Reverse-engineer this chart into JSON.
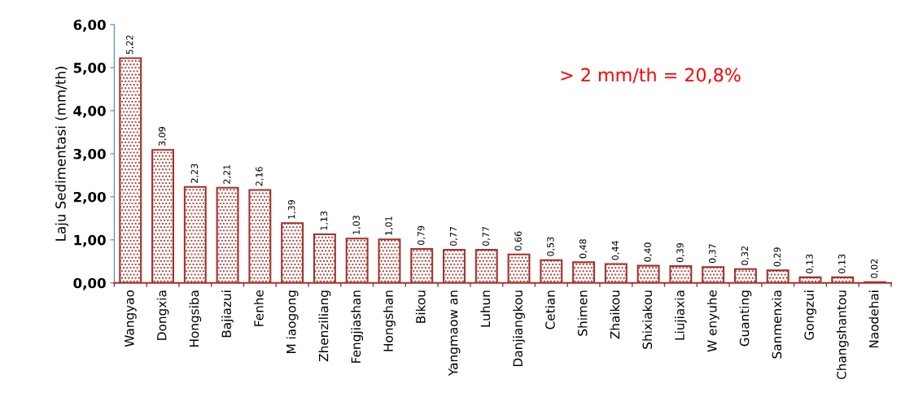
{
  "chart_data": {
    "type": "bar",
    "ylabel": "Laju Sedimentasi (mm/th)",
    "categories": [
      "Wangyao",
      "Dongxia",
      "Hongsiba",
      "Bajiazui",
      "Fenhe",
      "M iaogong",
      "Zhenziliang",
      "Fengjiashan",
      "Hongshan",
      "Bikou",
      "Yangmaow an",
      "Luhun",
      "Danjiangkou",
      "Cetian",
      "Shimen",
      "Zhaikou",
      "Shixiakou",
      "Liujiaxia",
      "W enyuhe",
      "Guanting",
      "Sanmenxia",
      "Gongzui",
      "Changshantou",
      "Naodehai"
    ],
    "values": [
      5.22,
      3.09,
      2.23,
      2.21,
      2.16,
      1.39,
      1.13,
      1.03,
      1.01,
      0.79,
      0.77,
      0.77,
      0.66,
      0.53,
      0.48,
      0.44,
      0.4,
      0.39,
      0.37,
      0.32,
      0.29,
      0.13,
      0.13,
      0.02
    ],
    "value_labels": [
      "5,22",
      "3,09",
      "2,23",
      "2,21",
      "2,16",
      "1,39",
      "1,13",
      "1,03",
      "1,01",
      "0,79",
      "0,77",
      "0,77",
      "0,66",
      "0,53",
      "0,48",
      "0,44",
      "0,40",
      "0,39",
      "0,37",
      "0,32",
      "0,29",
      "0,13",
      "0,13",
      "0,02"
    ],
    "color": "#a5322d",
    "ylim": [
      0,
      6
    ],
    "yticks": [
      {
        "value": 0,
        "label": "0,00"
      },
      {
        "value": 1,
        "label": "1,00"
      },
      {
        "value": 2,
        "label": "2,00"
      },
      {
        "value": 3,
        "label": "3,00"
      },
      {
        "value": 4,
        "label": "4,00"
      },
      {
        "value": 5,
        "label": "5,00"
      },
      {
        "value": 6,
        "label": "6,00"
      }
    ],
    "annotations": [
      "> 2 mm/th = 20,8%"
    ],
    "grid": false,
    "legend": false
  }
}
